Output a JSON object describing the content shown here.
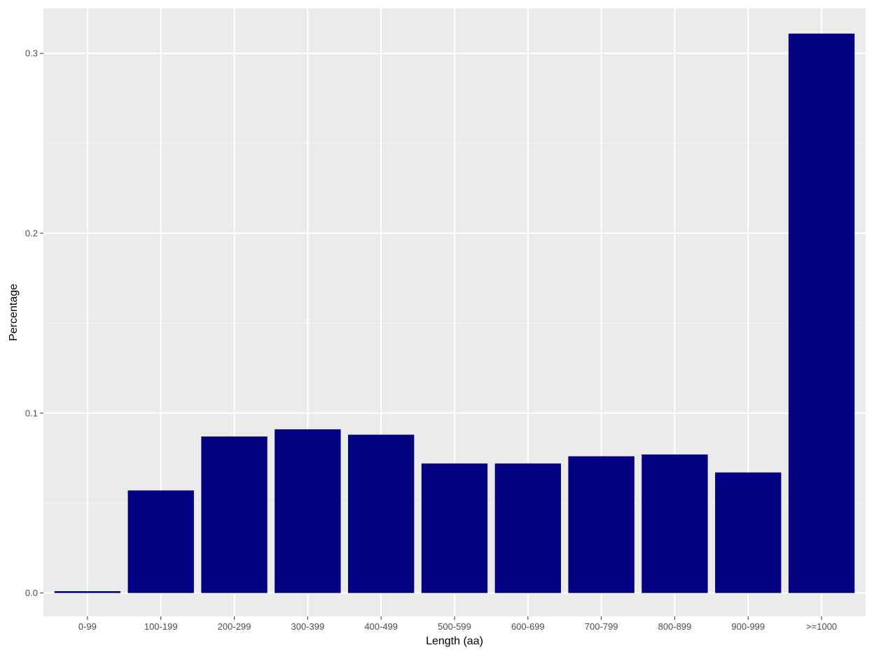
{
  "chart_data": {
    "type": "bar",
    "title": "",
    "xlabel": "Length (aa)",
    "ylabel": "Percentage",
    "categories": [
      "0-99",
      "100-199",
      "200-299",
      "300-399",
      "400-499",
      "500-599",
      "600-699",
      "700-799",
      "800-899",
      "900-999",
      ">=1000"
    ],
    "values": [
      0.001,
      0.057,
      0.087,
      0.091,
      0.088,
      0.072,
      0.072,
      0.076,
      0.077,
      0.067,
      0.311
    ],
    "ylim": [
      -0.013,
      0.325
    ],
    "yticks": [
      0.0,
      0.1,
      0.2,
      0.3
    ],
    "ytick_labels": [
      "0.0",
      "0.1",
      "0.2",
      "0.3"
    ],
    "grid": true,
    "legend": "none",
    "colors": {
      "bar": "#000080",
      "panel_background": "#ebebeb",
      "grid_major": "#ffffff",
      "grid_minor": "#f5f5f5",
      "tick_text": "#4d4d4d",
      "title_text": "#000000"
    }
  }
}
